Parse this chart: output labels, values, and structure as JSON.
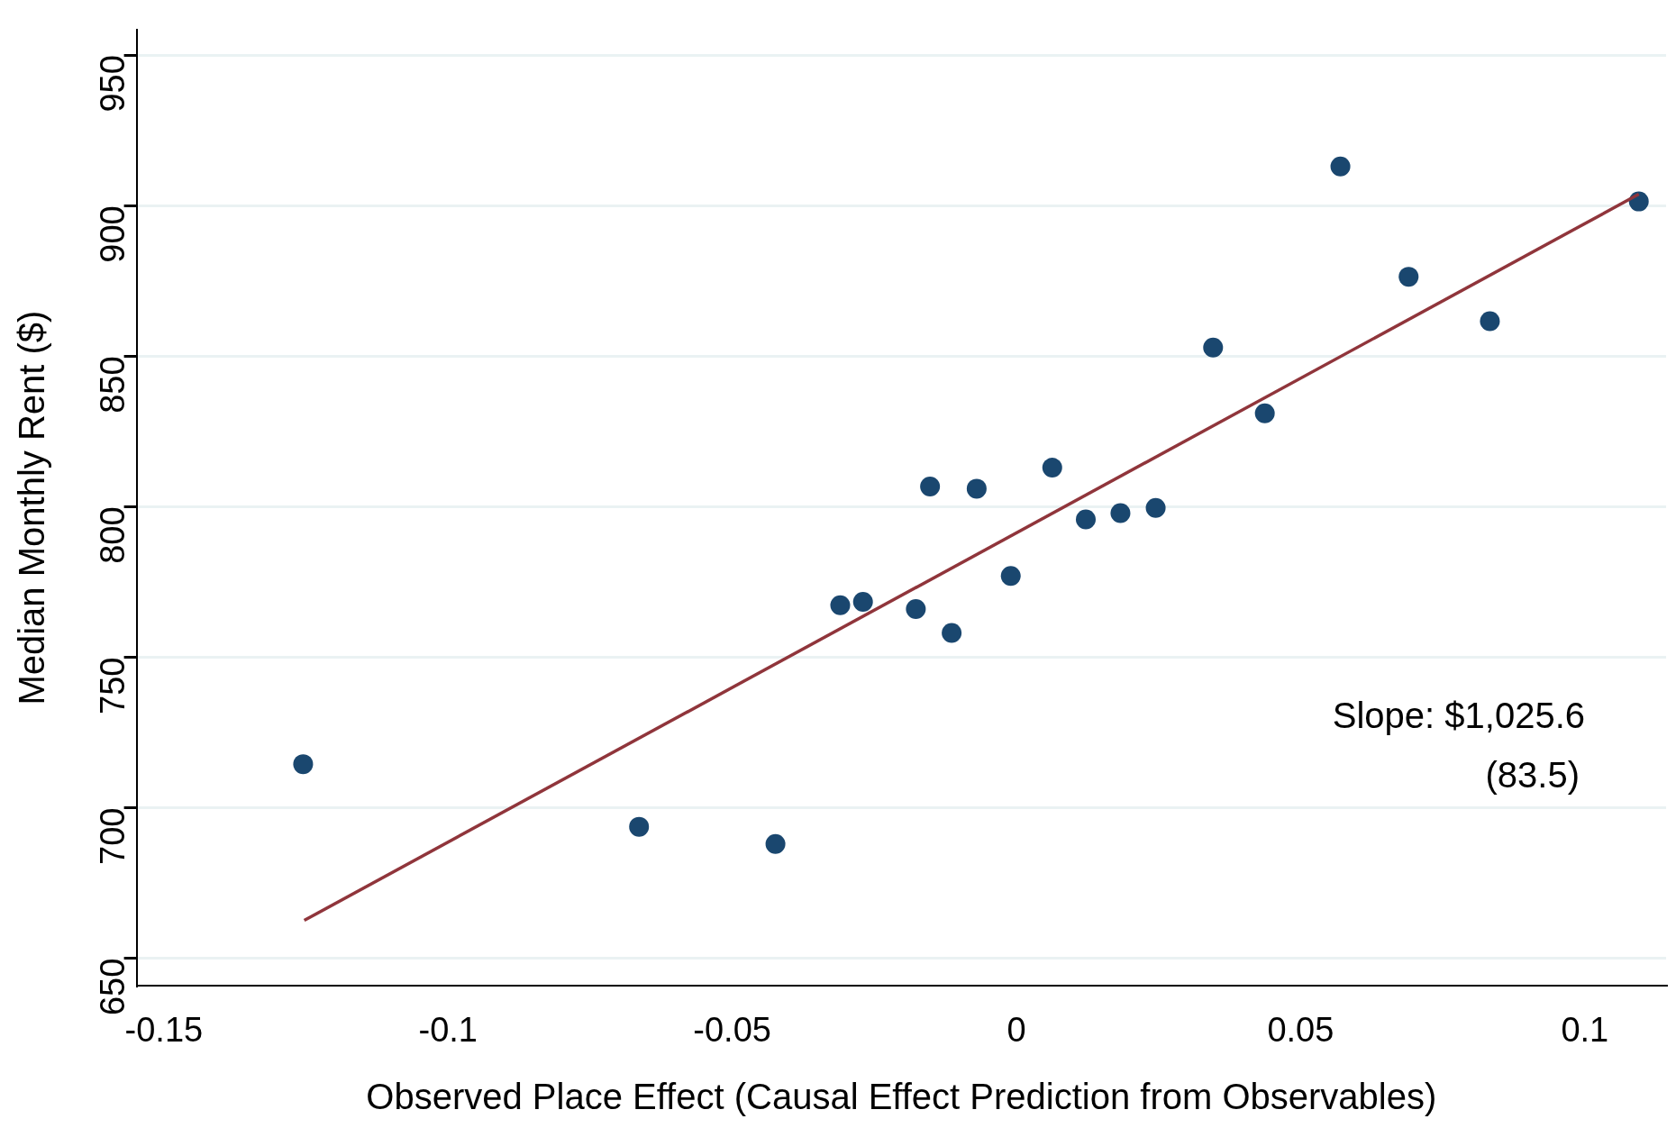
{
  "chart_data": {
    "type": "scatter",
    "xlabel": "Observed Place Effect (Causal Effect Prediction from Observables)",
    "ylabel": "Median Monthly Rent ($)",
    "series": [
      {
        "marker": "circle",
        "color": "#1a476f",
        "x": [
          -0.1255,
          -0.0664,
          -0.0424,
          -0.031,
          -0.027,
          -0.0177,
          -0.0152,
          -0.0114,
          -0.007,
          -0.001,
          0.0063,
          0.0122,
          0.0183,
          0.0245,
          0.0346,
          0.0437,
          0.057,
          0.069,
          0.0833,
          0.1095
        ],
        "values": [
          714.5,
          693.7,
          688,
          767.3,
          768.4,
          766,
          806.7,
          758.1,
          806,
          777,
          813,
          795.8,
          797.9,
          799.6,
          852.9,
          831,
          913,
          876.4,
          861.6,
          901.4
        ]
      },
      {
        "type": "line",
        "marker": "none",
        "color": "#90353b",
        "x": [
          -0.1253,
          0.1095
        ],
        "values": [
          662.6,
          903.8
        ]
      }
    ],
    "xlim": [
      -0.1548,
      0.1143
    ],
    "xticks": [
      -0.15,
      -0.1,
      -0.05,
      0,
      0.05,
      0.1
    ],
    "ylim": [
      640.8,
      958.5
    ],
    "yticks": [
      650,
      700,
      750,
      800,
      850,
      900,
      950
    ],
    "grid": "y",
    "legend": false,
    "annotations": [
      "Slope: $1,025.6",
      "(83.5)"
    ]
  }
}
